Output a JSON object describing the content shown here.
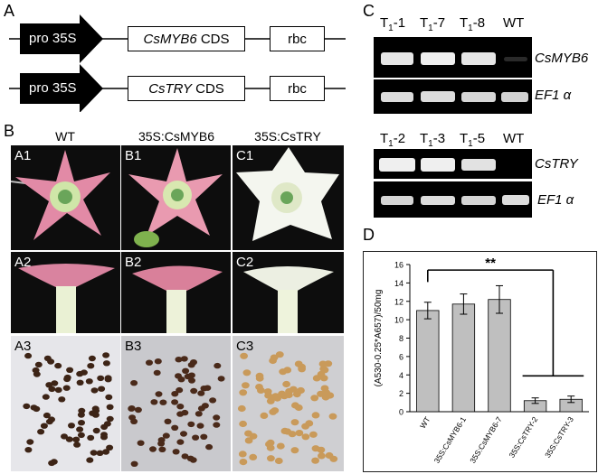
{
  "panel_A": {
    "letter": "A",
    "constructs": [
      {
        "promoter": "pro 35S",
        "gene": "CsMYB6",
        "cds_suffix": " CDS",
        "terminator": "rbc"
      },
      {
        "promoter": "pro 35S",
        "gene": "CsTRY",
        "cds_suffix": " CDS",
        "terminator": "rbc"
      }
    ]
  },
  "panel_B": {
    "letter": "B",
    "columns": [
      "WT",
      "35S:CsMYB6",
      "35S:CsTRY"
    ],
    "photos": [
      [
        "A1",
        "B1",
        "C1"
      ],
      [
        "A2",
        "B2",
        "C2"
      ],
      [
        "A3",
        "B3",
        "C3"
      ]
    ]
  },
  "panel_C": {
    "letter": "C",
    "gel1": {
      "lanes": [
        {
          "prefix": "T",
          "sub": "1",
          "suffix": "-1"
        },
        {
          "prefix": "T",
          "sub": "1",
          "suffix": "-7"
        },
        {
          "prefix": "T",
          "sub": "1",
          "suffix": "-8"
        },
        {
          "prefix": "WT",
          "sub": "",
          "suffix": ""
        }
      ],
      "genes": [
        "CsMYB6",
        "EF1 α"
      ]
    },
    "gel2": {
      "lanes": [
        {
          "prefix": "T",
          "sub": "1",
          "suffix": "-2"
        },
        {
          "prefix": "T",
          "sub": "1",
          "suffix": "-3"
        },
        {
          "prefix": "T",
          "sub": "1",
          "suffix": "-5"
        },
        {
          "prefix": "WT",
          "sub": "",
          "suffix": ""
        }
      ],
      "genes": [
        "CsTRY",
        "EF1 α"
      ]
    }
  },
  "panel_D": {
    "letter": "D",
    "significance": "**"
  },
  "chart_data": {
    "type": "bar",
    "categories": [
      "WT",
      "35S:CsMYB6-1",
      "35S:CsMYB6-7",
      "35S:CsTRY-2",
      "35S:CsTRY-3"
    ],
    "values": [
      11.0,
      11.7,
      12.2,
      1.2,
      1.35
    ],
    "errors": [
      0.9,
      1.1,
      1.5,
      0.3,
      0.35
    ],
    "ylabel": "(A530-0.25*A657)/50mg",
    "xlabel": "",
    "ylim": [
      0,
      16
    ],
    "yticks": [
      0,
      2,
      4,
      6,
      8,
      10,
      12,
      14,
      16
    ],
    "bar_color": "#bfbfbf",
    "grid": false
  }
}
